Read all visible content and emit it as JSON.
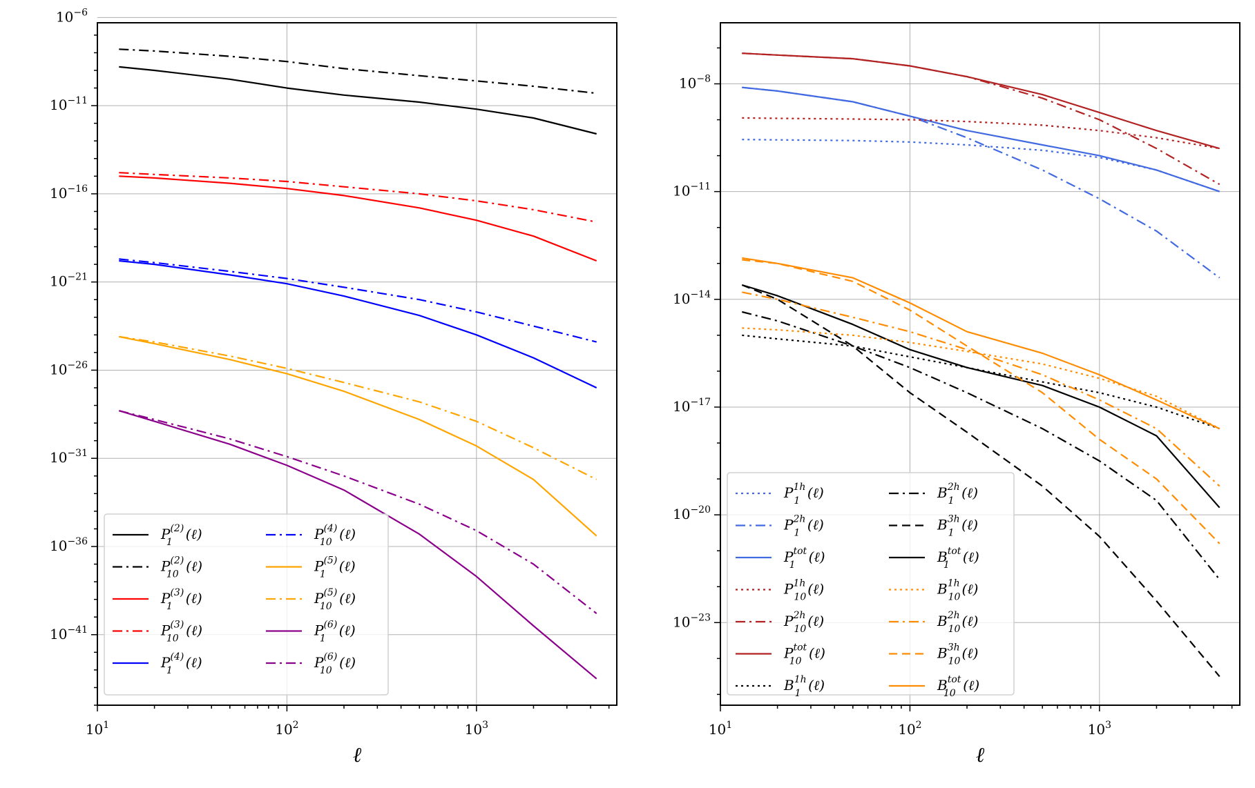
{
  "chart_data": [
    {
      "type": "line",
      "title": "",
      "xlabel": "ℓ",
      "ylabel": "",
      "xscale": "log",
      "yscale": "log",
      "xlim": [
        10,
        5500
      ],
      "ylim_exp": [
        -45,
        -6.3
      ],
      "grid": true,
      "legend_position": "lower-left",
      "legend_columns": 2,
      "x_ticks": [
        {
          "exp": 1,
          "base": "10",
          "sup": "1"
        },
        {
          "exp": 2,
          "base": "10",
          "sup": "2"
        },
        {
          "exp": 3,
          "base": "10",
          "sup": "3"
        }
      ],
      "y_ticks": [
        {
          "exp": -6,
          "base": "10",
          "sup": "−6"
        },
        {
          "exp": -11,
          "base": "10",
          "sup": "−11"
        },
        {
          "exp": -16,
          "base": "10",
          "sup": "−16"
        },
        {
          "exp": -21,
          "base": "10",
          "sup": "−21"
        },
        {
          "exp": -26,
          "base": "10",
          "sup": "−26"
        },
        {
          "exp": -31,
          "base": "10",
          "sup": "−31"
        },
        {
          "exp": -36,
          "base": "10",
          "sup": "−36"
        },
        {
          "exp": -41,
          "base": "10",
          "sup": "−41"
        }
      ],
      "x": [
        13,
        20,
        50,
        100,
        200,
        500,
        1000,
        2000,
        4300
      ],
      "series": [
        {
          "id": "P1_2",
          "label": {
            "base": "P",
            "sub": "1",
            "sup": "(2)",
            "arg": "(ℓ)"
          },
          "color": "#000000",
          "dash": "solid",
          "log10_values": [
            -8.8,
            -9.0,
            -9.5,
            -10.0,
            -10.4,
            -10.8,
            -11.2,
            -11.7,
            -12.6
          ]
        },
        {
          "id": "P10_2",
          "label": {
            "base": "P",
            "sub": "10",
            "sup": "(2)",
            "arg": "(ℓ)"
          },
          "color": "#000000",
          "dash": "dashdot",
          "log10_values": [
            -7.8,
            -7.9,
            -8.2,
            -8.5,
            -8.9,
            -9.3,
            -9.6,
            -9.9,
            -10.3
          ]
        },
        {
          "id": "P1_3",
          "label": {
            "base": "P",
            "sub": "1",
            "sup": "(3)",
            "arg": "(ℓ)"
          },
          "color": "#ff0000",
          "dash": "solid",
          "log10_values": [
            -15.0,
            -15.1,
            -15.4,
            -15.7,
            -16.1,
            -16.8,
            -17.5,
            -18.4,
            -19.8
          ]
        },
        {
          "id": "P10_3",
          "label": {
            "base": "P",
            "sub": "10",
            "sup": "(3)",
            "arg": "(ℓ)"
          },
          "color": "#ff0000",
          "dash": "dashdot",
          "log10_values": [
            -14.8,
            -14.9,
            -15.1,
            -15.3,
            -15.6,
            -16.0,
            -16.4,
            -16.9,
            -17.6
          ]
        },
        {
          "id": "P1_4",
          "label": {
            "base": "P",
            "sub": "1",
            "sup": "(4)",
            "arg": "(ℓ)"
          },
          "color": "#0000ff",
          "dash": "solid",
          "log10_values": [
            -19.8,
            -20.0,
            -20.6,
            -21.1,
            -21.8,
            -22.9,
            -24.0,
            -25.3,
            -27.0
          ]
        },
        {
          "id": "P10_4",
          "label": {
            "base": "P",
            "sub": "10",
            "sup": "(4)",
            "arg": "(ℓ)"
          },
          "color": "#0000ff",
          "dash": "dashdot",
          "log10_values": [
            -19.7,
            -19.9,
            -20.4,
            -20.8,
            -21.3,
            -22.0,
            -22.7,
            -23.5,
            -24.4
          ]
        },
        {
          "id": "P1_5",
          "label": {
            "base": "P",
            "sub": "1",
            "sup": "(5)",
            "arg": "(ℓ)"
          },
          "color": "#ffa500",
          "dash": "solid",
          "log10_values": [
            -24.1,
            -24.5,
            -25.4,
            -26.2,
            -27.2,
            -28.8,
            -30.3,
            -32.2,
            -35.4
          ]
        },
        {
          "id": "P10_5",
          "label": {
            "base": "P",
            "sub": "10",
            "sup": "(5)",
            "arg": "(ℓ)"
          },
          "color": "#ffa500",
          "dash": "dashdot",
          "log10_values": [
            -24.1,
            -24.4,
            -25.2,
            -25.9,
            -26.7,
            -27.8,
            -28.9,
            -30.4,
            -32.2
          ]
        },
        {
          "id": "P1_6",
          "label": {
            "base": "P",
            "sub": "1",
            "sup": "(6)",
            "arg": "(ℓ)"
          },
          "color": "#8b008b",
          "dash": "solid",
          "log10_values": [
            -28.3,
            -28.9,
            -30.2,
            -31.4,
            -32.8,
            -35.3,
            -37.7,
            -40.5,
            -43.5
          ]
        },
        {
          "id": "P10_6",
          "label": {
            "base": "P",
            "sub": "10",
            "sup": "(6)",
            "arg": "(ℓ)"
          },
          "color": "#8b008b",
          "dash": "dashdot",
          "log10_values": [
            -28.3,
            -28.8,
            -29.9,
            -30.9,
            -32.0,
            -33.6,
            -35.1,
            -37.0,
            -39.8
          ]
        }
      ]
    },
    {
      "type": "line",
      "title": "",
      "xlabel": "ℓ",
      "ylabel": "",
      "xscale": "log",
      "yscale": "log",
      "xlim": [
        10,
        5500
      ],
      "ylim_exp": [
        -25.3,
        -6.3
      ],
      "grid": true,
      "legend_position": "lower-left",
      "legend_columns": 2,
      "x_ticks": [
        {
          "exp": 1,
          "base": "10",
          "sup": "1"
        },
        {
          "exp": 2,
          "base": "10",
          "sup": "2"
        },
        {
          "exp": 3,
          "base": "10",
          "sup": "3"
        }
      ],
      "y_ticks": [
        {
          "exp": -8,
          "base": "10",
          "sup": "−8"
        },
        {
          "exp": -11,
          "base": "10",
          "sup": "−11"
        },
        {
          "exp": -14,
          "base": "10",
          "sup": "−14"
        },
        {
          "exp": -17,
          "base": "10",
          "sup": "−17"
        },
        {
          "exp": -20,
          "base": "10",
          "sup": "−20"
        },
        {
          "exp": -23,
          "base": "10",
          "sup": "−23"
        }
      ],
      "x": [
        13,
        20,
        50,
        100,
        200,
        500,
        1000,
        2000,
        4300
      ],
      "series": [
        {
          "id": "P1_1h",
          "label": {
            "base": "P",
            "sub": "1",
            "sup": "1h",
            "arg": "(ℓ)"
          },
          "color": "#4169e1",
          "dash": "dotted",
          "log10_values": [
            -9.55,
            -9.56,
            -9.58,
            -9.62,
            -9.7,
            -9.85,
            -10.05,
            -10.4,
            -11.0
          ]
        },
        {
          "id": "P1_2h",
          "label": {
            "base": "P",
            "sub": "1",
            "sup": "2h",
            "arg": "(ℓ)"
          },
          "color": "#4169e1",
          "dash": "dashdot",
          "log10_values": [
            -8.1,
            -8.2,
            -8.5,
            -8.9,
            -9.5,
            -10.4,
            -11.2,
            -12.1,
            -13.4
          ]
        },
        {
          "id": "P1_tot",
          "label": {
            "base": "P",
            "sub": "1",
            "sup": "tot",
            "arg": "(ℓ)"
          },
          "color": "#4169e1",
          "dash": "solid",
          "log10_values": [
            -8.1,
            -8.2,
            -8.5,
            -8.9,
            -9.3,
            -9.7,
            -10.0,
            -10.4,
            -11.0
          ]
        },
        {
          "id": "P10_1h",
          "label": {
            "base": "P",
            "sub": "10",
            "sup": "1h",
            "arg": "(ℓ)"
          },
          "color": "#b22222",
          "dash": "dotted",
          "log10_values": [
            -8.95,
            -8.96,
            -8.98,
            -9.0,
            -9.05,
            -9.15,
            -9.3,
            -9.5,
            -9.8
          ]
        },
        {
          "id": "P10_2h",
          "label": {
            "base": "P",
            "sub": "10",
            "sup": "2h",
            "arg": "(ℓ)"
          },
          "color": "#b22222",
          "dash": "dashdot",
          "log10_values": [
            -7.15,
            -7.2,
            -7.3,
            -7.5,
            -7.8,
            -8.4,
            -9.0,
            -9.8,
            -10.8
          ]
        },
        {
          "id": "P10_tot",
          "label": {
            "base": "P",
            "sub": "10",
            "sup": "tot",
            "arg": "(ℓ)"
          },
          "color": "#b22222",
          "dash": "solid",
          "log10_values": [
            -7.15,
            -7.2,
            -7.3,
            -7.5,
            -7.8,
            -8.3,
            -8.8,
            -9.3,
            -9.8
          ]
        },
        {
          "id": "B1_1h",
          "label": {
            "base": "B",
            "sub": "1",
            "sup": "1h",
            "arg": "(ℓ)"
          },
          "color": "#000000",
          "dash": "dotted",
          "log10_values": [
            -15.0,
            -15.1,
            -15.3,
            -15.6,
            -15.9,
            -16.3,
            -16.6,
            -17.0,
            -17.6
          ]
        },
        {
          "id": "B1_2h",
          "label": {
            "base": "B",
            "sub": "1",
            "sup": "2h",
            "arg": "(ℓ)"
          },
          "color": "#000000",
          "dash": "dashdot",
          "log10_values": [
            -14.35,
            -14.6,
            -15.3,
            -15.9,
            -16.6,
            -17.6,
            -18.5,
            -19.6,
            -21.8
          ]
        },
        {
          "id": "B1_3h",
          "label": {
            "base": "B",
            "sub": "1",
            "sup": "3h",
            "arg": "(ℓ)"
          },
          "color": "#000000",
          "dash": "dashed",
          "log10_values": [
            -13.6,
            -14.0,
            -15.3,
            -16.6,
            -17.7,
            -19.2,
            -20.6,
            -22.4,
            -24.5
          ]
        },
        {
          "id": "B1_tot",
          "label": {
            "base": "B",
            "sub": "1",
            "sup": "tot",
            "arg": "(ℓ)"
          },
          "color": "#000000",
          "dash": "solid",
          "log10_values": [
            -13.6,
            -13.9,
            -14.7,
            -15.4,
            -15.9,
            -16.4,
            -17.0,
            -17.8,
            -19.8
          ]
        },
        {
          "id": "B10_1h",
          "label": {
            "base": "B",
            "sub": "10",
            "sup": "1h",
            "arg": "(ℓ)"
          },
          "color": "#ff8c00",
          "dash": "dotted",
          "log10_values": [
            -14.8,
            -14.85,
            -15.0,
            -15.2,
            -15.45,
            -15.8,
            -16.2,
            -16.7,
            -17.6
          ]
        },
        {
          "id": "B10_2h",
          "label": {
            "base": "B",
            "sub": "10",
            "sup": "2h",
            "arg": "(ℓ)"
          },
          "color": "#ff8c00",
          "dash": "dashdot",
          "log10_values": [
            -13.8,
            -14.0,
            -14.5,
            -14.9,
            -15.4,
            -16.1,
            -16.8,
            -17.6,
            -19.2
          ]
        },
        {
          "id": "B10_3h",
          "label": {
            "base": "B",
            "sub": "10",
            "sup": "3h",
            "arg": "(ℓ)"
          },
          "color": "#ff8c00",
          "dash": "dashed",
          "log10_values": [
            -12.9,
            -13.0,
            -13.5,
            -14.3,
            -15.3,
            -16.6,
            -17.9,
            -19.0,
            -20.8
          ]
        },
        {
          "id": "B10_tot",
          "label": {
            "base": "B",
            "sub": "10",
            "sup": "tot",
            "arg": "(ℓ)"
          },
          "color": "#ff8c00",
          "dash": "solid",
          "log10_values": [
            -12.85,
            -13.0,
            -13.4,
            -14.1,
            -14.9,
            -15.5,
            -16.1,
            -16.8,
            -17.6
          ]
        }
      ]
    }
  ]
}
